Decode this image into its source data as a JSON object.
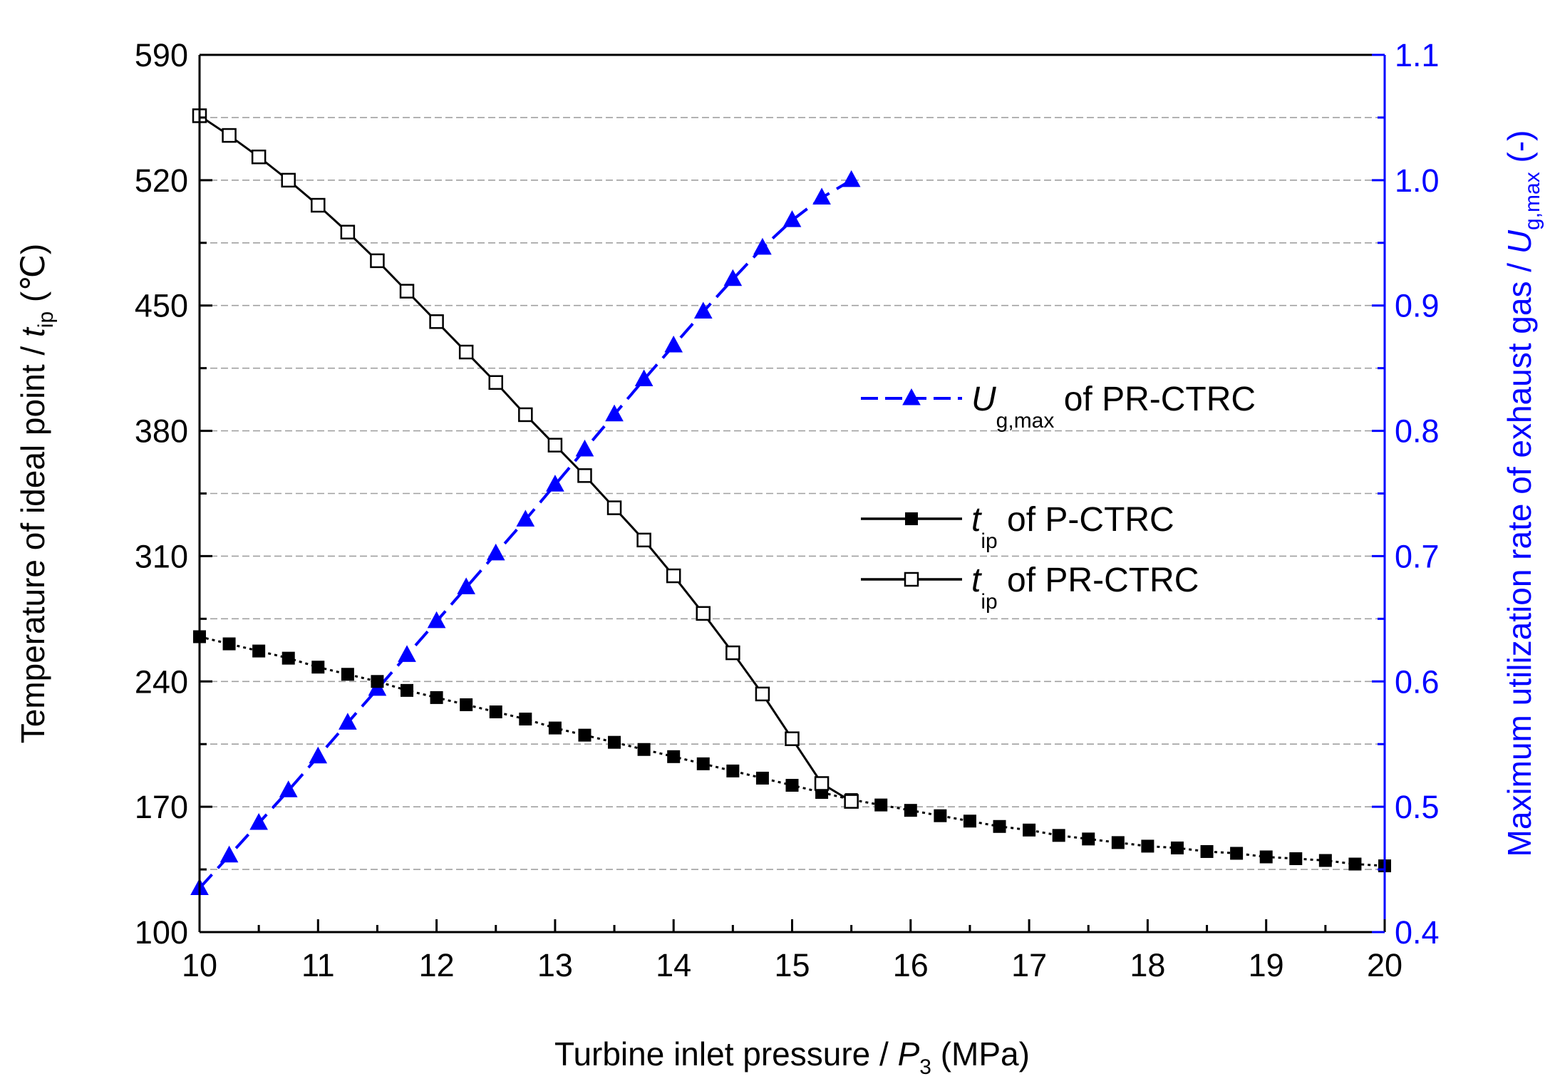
{
  "chart_data": {
    "type": "line",
    "xlabel": {
      "text": "Turbine inlet pressure / ",
      "var": "P",
      "sub": "3",
      "unit": " (MPa)"
    },
    "ylabel_left": {
      "text": "Temperature of ideal point / ",
      "var": "t",
      "sub": "ip",
      "unit": " (℃)"
    },
    "ylabel_right": {
      "text": "Maximum utilization rate of exhaust gas / ",
      "var": "U",
      "sub": "g,max",
      "unit": " (-)"
    },
    "x_range": [
      10,
      20
    ],
    "x_ticks": [
      "10",
      "11",
      "12",
      "13",
      "14",
      "15",
      "16",
      "17",
      "18",
      "19",
      "20"
    ],
    "y_left_range": [
      100,
      590
    ],
    "y_left_ticks": [
      "100",
      "170",
      "240",
      "310",
      "380",
      "450",
      "520",
      "590"
    ],
    "y_right_range": [
      0.4,
      1.1
    ],
    "y_right_ticks": [
      "0.4",
      "0.5",
      "0.6",
      "0.7",
      "0.8",
      "0.9",
      "1.0",
      "1.1"
    ],
    "grid": "horizontal dashed",
    "colors": {
      "black": "#000000",
      "blue": "#0000ff",
      "grid": "#a0a0a0"
    },
    "series": [
      {
        "name": "U_g,max of PR-CTRC",
        "legend": {
          "var": "U",
          "sub": "g,max",
          "rest": " of PR-CTRC"
        },
        "axis": "right",
        "marker": "filled-triangle",
        "line": "dashed",
        "color": "#0000ff",
        "x": [
          10,
          10.25,
          10.5,
          10.75,
          11,
          11.25,
          11.5,
          11.75,
          12,
          12.25,
          12.5,
          12.75,
          13,
          13.25,
          13.5,
          13.75,
          14,
          14.25,
          14.5,
          14.75,
          15,
          15.25,
          15.5
        ],
        "values": [
          0.435,
          0.461,
          0.487,
          0.513,
          0.54,
          0.567,
          0.594,
          0.621,
          0.648,
          0.675,
          0.702,
          0.729,
          0.757,
          0.785,
          0.813,
          0.841,
          0.868,
          0.895,
          0.921,
          0.946,
          0.968,
          0.986,
          1.0
        ]
      },
      {
        "name": "t_ip of P-CTRC",
        "legend": {
          "var": "t",
          "sub": "ip",
          "rest": " of P-CTRC"
        },
        "axis": "left",
        "marker": "filled-square",
        "line": "dotted",
        "color": "#000000",
        "x": [
          10,
          10.25,
          10.5,
          10.75,
          11,
          11.25,
          11.5,
          11.75,
          12,
          12.25,
          12.5,
          12.75,
          13,
          13.25,
          13.5,
          13.75,
          14,
          14.25,
          14.5,
          14.75,
          15,
          15.25,
          15.5,
          15.75,
          16,
          16.25,
          16.5,
          16.75,
          17,
          17.25,
          17.5,
          17.75,
          18,
          18.25,
          18.5,
          18.75,
          19,
          19.25,
          19.5,
          19.75,
          20
        ],
        "values": [
          265,
          261,
          257,
          253,
          248,
          244,
          240,
          235,
          231,
          227,
          223,
          219,
          214,
          210,
          206,
          202,
          198,
          194,
          190,
          186,
          182,
          178,
          174,
          171,
          168,
          165,
          162,
          159,
          157,
          154,
          152,
          150,
          148,
          147,
          145,
          144,
          142,
          141,
          140,
          138,
          137
        ]
      },
      {
        "name": "t_ip of PR-CTRC",
        "legend": {
          "var": "t",
          "sub": "ip",
          "rest": " of PR-CTRC"
        },
        "axis": "left",
        "marker": "open-square",
        "line": "solid",
        "color": "#000000",
        "x": [
          10,
          10.25,
          10.5,
          10.75,
          11,
          11.25,
          11.5,
          11.75,
          12,
          12.25,
          12.5,
          12.75,
          13,
          13.25,
          13.5,
          13.75,
          14,
          14.25,
          14.5,
          14.75,
          15,
          15.25,
          15.5
        ],
        "values": [
          556,
          545,
          533,
          520,
          506,
          491,
          475,
          458,
          441,
          424,
          407,
          389,
          372,
          355,
          337,
          319,
          299,
          278,
          256,
          233,
          208,
          183,
          173
        ]
      }
    ]
  }
}
